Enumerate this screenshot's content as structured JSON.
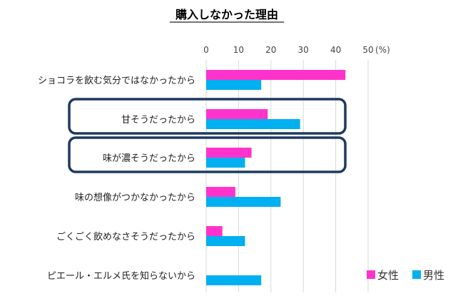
{
  "chart_data": {
    "type": "bar",
    "orientation": "horizontal",
    "title": "購入しなかった理由",
    "x_ticks": [
      "0",
      "10",
      "20",
      "30",
      "40",
      "50"
    ],
    "x_unit": "(%)",
    "xlim": [
      0,
      50
    ],
    "grid": true,
    "legend_position": "bottom-right",
    "categories": [
      "ショコラを飲む気分ではなかったから",
      "甘そうだったから",
      "味が濃そうだったから",
      "味の想像がつかなかったから",
      "ごくごく飲めなさそうだったから",
      "ピエール・エルメ氏を知らないから"
    ],
    "series": [
      {
        "name": "女性",
        "color": "#ff33cc",
        "values": [
          43,
          19,
          14,
          9,
          5,
          0
        ]
      },
      {
        "name": "男性",
        "color": "#00b0f0",
        "values": [
          17,
          29,
          12,
          23,
          12,
          17
        ]
      }
    ],
    "highlighted_categories": [
      1,
      2
    ],
    "highlight_color": "#1f3a5f"
  }
}
